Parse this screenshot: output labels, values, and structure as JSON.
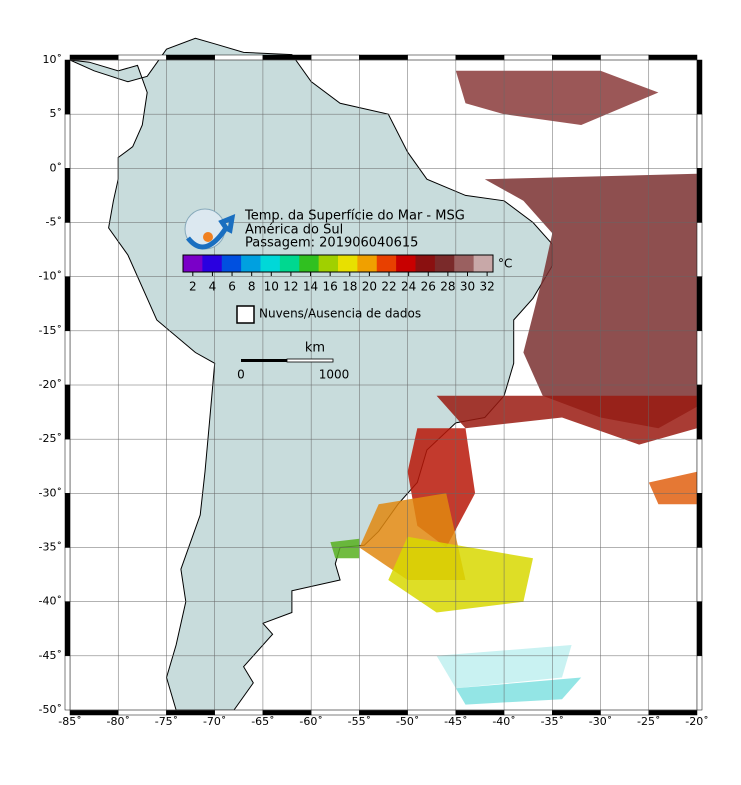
{
  "map": {
    "title_lines": [
      "Temp. da Superfície do Mar - MSG",
      "América do Sul",
      "Passagem: 201906040615"
    ],
    "unit": "°C",
    "colorbar": {
      "range": [
        1,
        32.6
      ],
      "ticks": [
        2,
        4,
        6,
        8,
        10,
        12,
        14,
        16,
        18,
        20,
        22,
        24,
        26,
        28,
        30,
        32
      ],
      "colors": [
        "#7a00c8",
        "#2a00e0",
        "#0050e0",
        "#00a0e0",
        "#00d8d8",
        "#00d890",
        "#30c020",
        "#a0d000",
        "#e8e000",
        "#f0a000",
        "#e84000",
        "#c80000",
        "#8a1010",
        "#7a2a2a",
        "#9a6060",
        "#c8a8a8"
      ]
    },
    "legend": "Nuvens/Ausencia de dados",
    "scale": {
      "unit": "km",
      "labels": [
        "0",
        "1000"
      ]
    },
    "lon_ticks": [
      {
        "value": -85,
        "label": "-85˚"
      },
      {
        "value": -80,
        "label": "-80˚"
      },
      {
        "value": -75,
        "label": "-75˚"
      },
      {
        "value": -70,
        "label": "-70˚"
      },
      {
        "value": -65,
        "label": "-65˚"
      },
      {
        "value": -60,
        "label": "-60˚"
      },
      {
        "value": -55,
        "label": "-55˚"
      },
      {
        "value": -50,
        "label": "-50˚"
      },
      {
        "value": -45,
        "label": "-45˚"
      },
      {
        "value": -40,
        "label": "-40˚"
      },
      {
        "value": -35,
        "label": "-35˚"
      },
      {
        "value": -30,
        "label": "-30˚"
      },
      {
        "value": -25,
        "label": "-25˚"
      },
      {
        "value": -20,
        "label": "-20˚"
      }
    ],
    "lat_ticks": [
      {
        "value": 10,
        "label": "10˚"
      },
      {
        "value": 5,
        "label": "5˚"
      },
      {
        "value": 0,
        "label": "0˚"
      },
      {
        "value": -5,
        "label": "-5˚"
      },
      {
        "value": -10,
        "label": "-10˚"
      },
      {
        "value": -15,
        "label": "-15˚"
      },
      {
        "value": -20,
        "label": "-20˚"
      },
      {
        "value": -25,
        "label": "-25˚"
      },
      {
        "value": -30,
        "label": "-30˚"
      },
      {
        "value": -35,
        "label": "-35˚"
      },
      {
        "value": -40,
        "label": "-40˚"
      },
      {
        "value": -45,
        "label": "-45˚"
      },
      {
        "value": -50,
        "label": "-50˚"
      }
    ],
    "lon_range": [
      -85,
      -20
    ],
    "lat_range": [
      10,
      -50
    ]
  }
}
